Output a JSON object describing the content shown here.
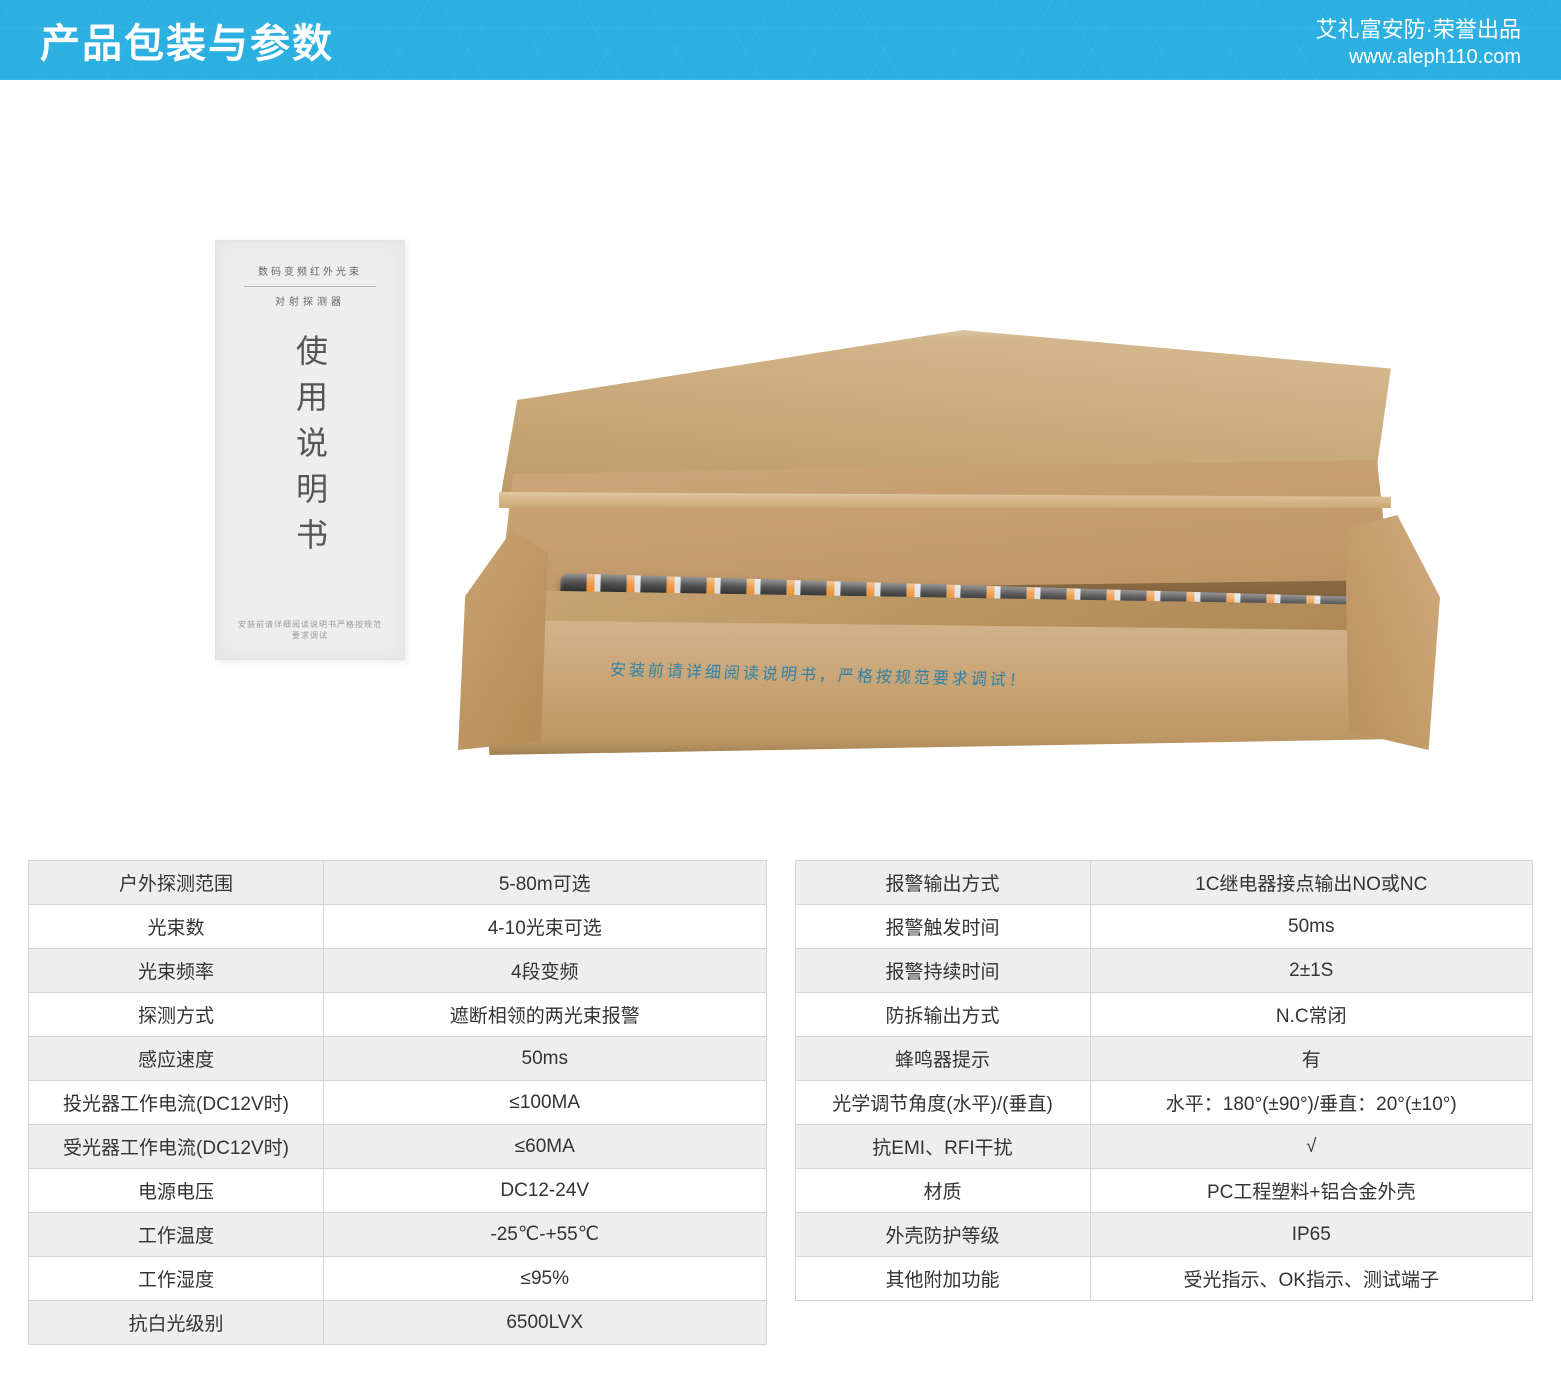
{
  "header": {
    "title": "产品包装与参数",
    "brand": "艾礼富安防·荣誉出品",
    "url": "www.aleph110.com"
  },
  "manual": {
    "top_line1": "数码变频红外光束",
    "top_line2": "对射探测器",
    "title": "使用说明书",
    "bottom": "安装前请详细阅读说明书严格按规范要求调试"
  },
  "box_text": "安装前请详细阅读说明书，严格按规范要求调试！",
  "left_table": {
    "rows": [
      {
        "label": "户外探测范围",
        "value": "5-80m可选"
      },
      {
        "label": "光束数",
        "value": "4-10光束可选"
      },
      {
        "label": "光束频率",
        "value": "4段变频"
      },
      {
        "label": "探测方式",
        "value": "遮断相领的两光束报警"
      },
      {
        "label": "感应速度",
        "value": "50ms"
      },
      {
        "label": "投光器工作电流(DC12V时)",
        "value": "≤100MA"
      },
      {
        "label": "受光器工作电流(DC12V时)",
        "value": "≤60MA"
      },
      {
        "label": "电源电压",
        "value": "DC12-24V"
      },
      {
        "label": "工作温度",
        "value": "-25℃-+55℃"
      },
      {
        "label": "工作湿度",
        "value": "≤95%"
      },
      {
        "label": "抗白光级别",
        "value": "6500LVX"
      }
    ]
  },
  "right_table": {
    "rows": [
      {
        "label": "报警输出方式",
        "value": "1C继电器接点输出NO或NC"
      },
      {
        "label": "报警触发时间",
        "value": "50ms"
      },
      {
        "label": "报警持续时间",
        "value": "2±1S"
      },
      {
        "label": "防拆输出方式",
        "value": "N.C常闭"
      },
      {
        "label": "蜂鸣器提示",
        "value": "有"
      },
      {
        "label": "光学调节角度(水平)/(垂直)",
        "value": "水平：180°(±90°)/垂直：20°(±10°)"
      },
      {
        "label": "抗EMI、RFI干扰",
        "value": "√"
      },
      {
        "label": "材质",
        "value": "PC工程塑料+铝合金外壳"
      },
      {
        "label": "外壳防护等级",
        "value": "IP65"
      },
      {
        "label": "其他附加功能",
        "value": "受光指示、OK指示、测试端子"
      }
    ]
  },
  "colors": {
    "header_bg": "#2bb0e1",
    "row_alt_bg": "#eeeeee",
    "border": "#d5d5d5",
    "text": "#333333",
    "box_text": "#2b82a8"
  }
}
